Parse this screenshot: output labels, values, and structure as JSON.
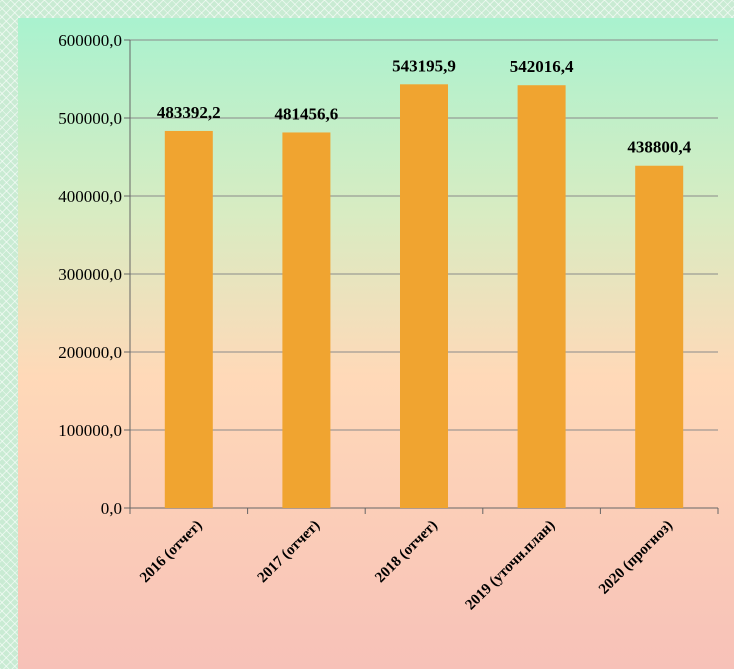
{
  "chart_data": {
    "type": "bar",
    "categories": [
      "2016 (отчет)",
      "2017 (отчет)",
      "2018 (отчет)",
      "2019 (уточн.план)",
      "2020 (прогноз)"
    ],
    "values": [
      483392.2,
      481456.6,
      543195.9,
      542016.4,
      438800.4
    ],
    "data_labels": [
      "483392,2",
      "481456,6",
      "543195,9",
      "542016,4",
      "438800,4"
    ],
    "y_ticks": [
      0,
      100000,
      200000,
      300000,
      400000,
      500000,
      600000
    ],
    "y_tick_labels": [
      "0,0",
      "100000,0",
      "200000,0",
      "300000,0",
      "400000,0",
      "500000,0",
      "600000,0"
    ],
    "ylim": [
      0,
      600000
    ],
    "grid": true,
    "bar_color": "#f0a430",
    "title": "",
    "xlabel": "",
    "ylabel": ""
  }
}
